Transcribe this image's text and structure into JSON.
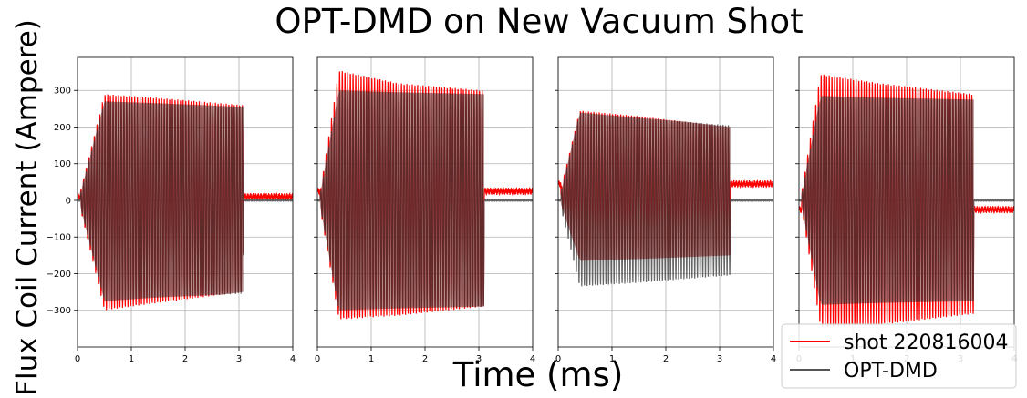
{
  "figure": {
    "title": "OPT-DMD on New Vacuum Shot",
    "xlabel": "Time (ms)",
    "ylabel": "Flux Coil Current (Ampere)"
  },
  "legend": {
    "placement": "bottom-right",
    "entries": [
      {
        "label": "shot 220816004",
        "color": "#ff0000"
      },
      {
        "label": "OPT-DMD",
        "color": "#555555"
      }
    ]
  },
  "colors": {
    "measured": "#ff0000",
    "fit": "#555555",
    "overlap": "#5a0000"
  },
  "chart_data": [
    {
      "type": "line",
      "panel": 1,
      "xlim": [
        0,
        4
      ],
      "ylim": [
        -400,
        390
      ],
      "grid": true,
      "xticks": [
        0,
        1,
        2,
        3,
        4
      ],
      "yticks": [
        -300,
        -200,
        -100,
        0,
        100,
        200,
        300
      ],
      "oscillation_start_ms": 0.05,
      "oscillation_end_ms": 3.08,
      "series": [
        {
          "name": "shot 220816004",
          "envelope_ms": [
            0.05,
            0.5,
            1.5,
            3.08
          ],
          "envelope_upper": [
            20,
            290,
            280,
            260
          ],
          "envelope_lower": [
            -20,
            -300,
            -280,
            -250
          ],
          "tail_mean": 10
        },
        {
          "name": "OPT-DMD",
          "envelope_ms": [
            0.05,
            0.5,
            1.5,
            3.08
          ],
          "envelope_upper": [
            15,
            270,
            265,
            255
          ],
          "envelope_lower": [
            -15,
            -275,
            -265,
            -255
          ],
          "tail_mean": 0
        }
      ]
    },
    {
      "type": "line",
      "panel": 2,
      "xlim": [
        0,
        4
      ],
      "ylim": [
        -400,
        390
      ],
      "grid": true,
      "xticks": [
        0,
        1,
        2,
        3,
        4
      ],
      "yticks": [
        -300,
        -200,
        -100,
        0,
        100,
        200,
        300
      ],
      "oscillation_start_ms": 0.05,
      "oscillation_end_ms": 3.1,
      "series": [
        {
          "name": "shot 220816004",
          "envelope_ms": [
            0.05,
            0.4,
            1.5,
            3.1
          ],
          "envelope_upper": [
            20,
            355,
            320,
            300
          ],
          "envelope_lower": [
            -20,
            -325,
            -315,
            -290
          ],
          "tail_mean": 25
        },
        {
          "name": "OPT-DMD",
          "envelope_ms": [
            0.05,
            0.4,
            1.5,
            3.1
          ],
          "envelope_upper": [
            15,
            300,
            295,
            290
          ],
          "envelope_lower": [
            -15,
            -300,
            -295,
            -290
          ],
          "tail_mean": 0
        }
      ]
    },
    {
      "type": "line",
      "panel": 3,
      "xlim": [
        0,
        4
      ],
      "ylim": [
        -400,
        390
      ],
      "grid": true,
      "xticks": [
        0,
        1,
        2,
        3,
        4
      ],
      "yticks": [
        -300,
        -200,
        -100,
        0,
        100,
        200,
        300
      ],
      "oscillation_start_ms": 0.05,
      "oscillation_end_ms": 3.2,
      "series": [
        {
          "name": "shot 220816004",
          "envelope_ms": [
            0.05,
            0.4,
            1.5,
            3.2
          ],
          "envelope_upper": [
            30,
            245,
            230,
            200
          ],
          "envelope_lower": [
            -10,
            -165,
            -160,
            -150
          ],
          "tail_mean": 45
        },
        {
          "name": "OPT-DMD",
          "envelope_ms": [
            0.05,
            0.4,
            1.5,
            3.2
          ],
          "envelope_upper": [
            20,
            240,
            225,
            205
          ],
          "envelope_lower": [
            -20,
            -235,
            -225,
            -205
          ],
          "tail_mean": 0
        }
      ]
    },
    {
      "type": "line",
      "panel": 4,
      "xlim": [
        0,
        4
      ],
      "ylim": [
        -400,
        390
      ],
      "grid": true,
      "xticks": [
        0,
        1,
        2,
        3,
        4
      ],
      "yticks": [
        -300,
        -200,
        -100,
        0,
        100,
        200,
        300
      ],
      "oscillation_start_ms": 0.05,
      "oscillation_end_ms": 3.25,
      "series": [
        {
          "name": "shot 220816004",
          "envelope_ms": [
            0.05,
            0.4,
            1.5,
            3.25
          ],
          "envelope_upper": [
            20,
            345,
            320,
            290
          ],
          "envelope_lower": [
            -20,
            -345,
            -340,
            -310
          ],
          "tail_mean": -25
        },
        {
          "name": "OPT-DMD",
          "envelope_ms": [
            0.05,
            0.4,
            1.5,
            3.25
          ],
          "envelope_upper": [
            15,
            285,
            280,
            275
          ],
          "envelope_lower": [
            -15,
            -285,
            -280,
            -275
          ],
          "tail_mean": 0
        }
      ]
    }
  ]
}
